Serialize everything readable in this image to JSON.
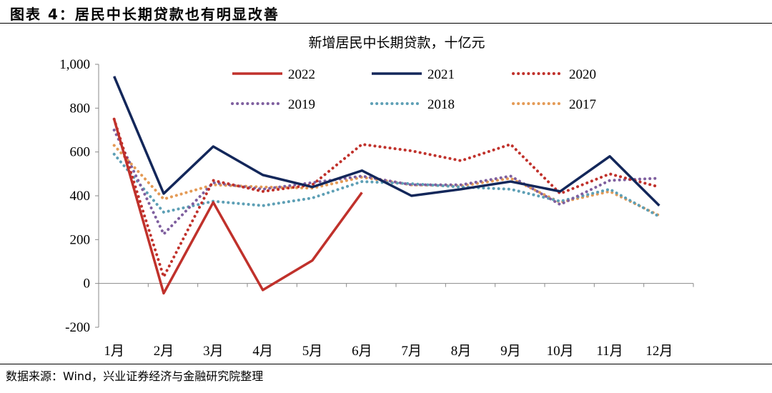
{
  "figure_title": "图表 4：居民中长期贷款也有明显改善",
  "source_note": "数据来源：Wind，兴业证券经济与金融研究院整理",
  "colors": {
    "2022": "#c0312b",
    "2021": "#13275a",
    "2020": "#c0312b",
    "2019": "#7f5f9f",
    "2018": "#5d9fb5",
    "2017": "#e49a55"
  },
  "chart_data": {
    "type": "line",
    "title": "新增居民中长期贷款，十亿元",
    "xlabel": "",
    "ylabel": "",
    "ylim": [
      -200,
      1000
    ],
    "yticks": [
      -200,
      0,
      200,
      400,
      600,
      800,
      1000
    ],
    "ytick_labels": [
      "-200",
      "0",
      "200",
      "400",
      "600",
      "800",
      "1,000"
    ],
    "categories": [
      "1月",
      "2月",
      "3月",
      "4月",
      "5月",
      "6月",
      "7月",
      "8月",
      "9月",
      "10月",
      "11月",
      "12月"
    ],
    "legend_position": "top",
    "series": [
      {
        "name": "2022",
        "style": "solid",
        "values": [
          750,
          -45,
          370,
          -30,
          105,
          415,
          null,
          null,
          null,
          null,
          null,
          null
        ]
      },
      {
        "name": "2021",
        "style": "solid",
        "values": [
          945,
          410,
          625,
          495,
          440,
          515,
          400,
          430,
          465,
          420,
          580,
          355
        ]
      },
      {
        "name": "2020",
        "style": "dotted",
        "values": [
          750,
          30,
          470,
          420,
          450,
          635,
          605,
          560,
          635,
          410,
          500,
          440
        ]
      },
      {
        "name": "2019",
        "style": "dotted",
        "values": [
          700,
          225,
          460,
          430,
          460,
          490,
          450,
          450,
          490,
          360,
          470,
          480
        ]
      },
      {
        "name": "2018",
        "style": "dotted",
        "values": [
          590,
          325,
          375,
          355,
          390,
          465,
          455,
          440,
          430,
          375,
          430,
          305
        ]
      },
      {
        "name": "2017",
        "style": "dotted",
        "values": [
          630,
          385,
          450,
          440,
          435,
          485,
          450,
          445,
          480,
          370,
          420,
          310
        ]
      }
    ]
  }
}
